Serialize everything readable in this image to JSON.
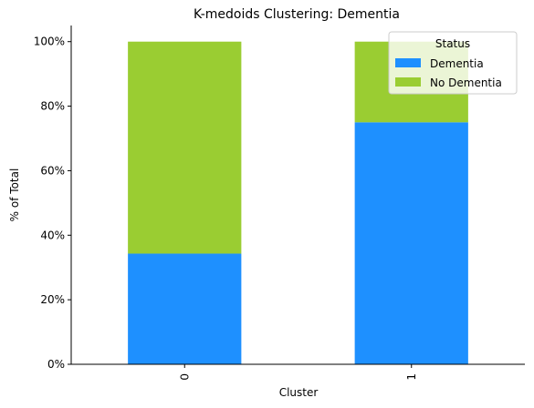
{
  "chart_data": {
    "type": "bar",
    "stacked": true,
    "title": "K-medoids Clustering: Dementia",
    "xlabel": "Cluster",
    "ylabel": "% of Total",
    "categories": [
      "0",
      "1"
    ],
    "ylim": [
      0,
      105
    ],
    "yticks": [
      0,
      20,
      40,
      60,
      80,
      100
    ],
    "ytick_labels": [
      "0%",
      "20%",
      "40%",
      "60%",
      "80%",
      "100%"
    ],
    "grid": false,
    "legend": {
      "title": "Status",
      "placement": "top-right"
    },
    "series": [
      {
        "name": "Dementia",
        "color": "#1e90ff",
        "values": [
          34.3,
          75.0
        ]
      },
      {
        "name": "No Dementia",
        "color": "#9acd32",
        "values": [
          65.7,
          25.0
        ]
      }
    ]
  }
}
